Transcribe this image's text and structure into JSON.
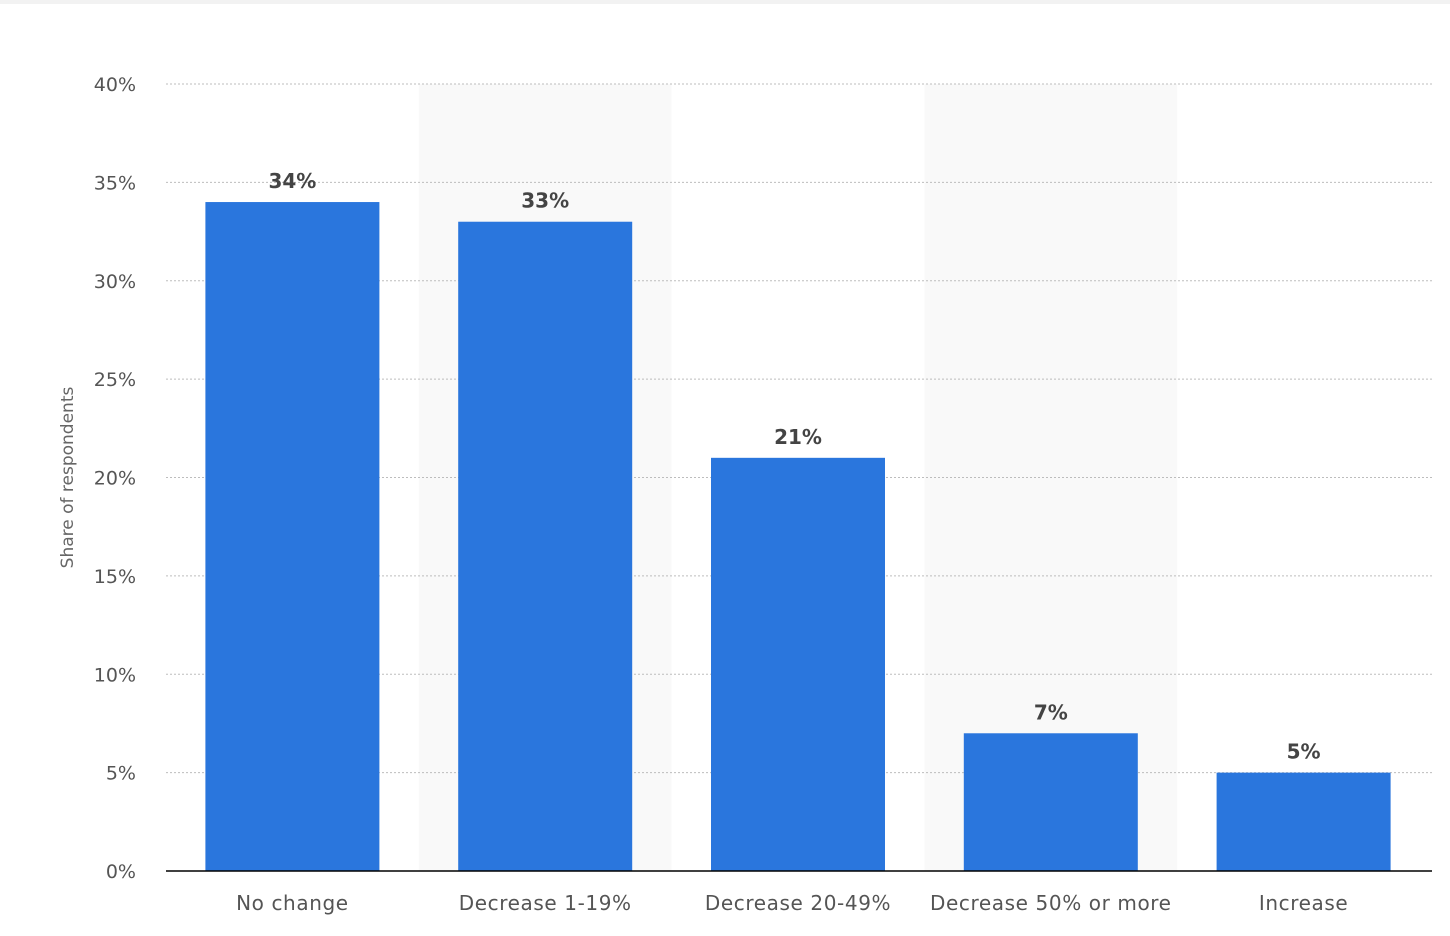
{
  "chart_data": {
    "type": "bar",
    "categories": [
      "No change",
      "Decrease 1-19%",
      "Decrease 20-49%",
      "Decrease 50% or more",
      "Increase"
    ],
    "values": [
      34,
      33,
      21,
      7,
      5
    ],
    "value_labels": [
      "34%",
      "33%",
      "21%",
      "7%",
      "5%"
    ],
    "title": "",
    "xlabel": "",
    "ylabel": "Share of respondents",
    "ylim": [
      0,
      40
    ],
    "yticks": [
      0,
      5,
      10,
      15,
      20,
      25,
      30,
      35,
      40
    ],
    "ytick_labels": [
      "0%",
      "5%",
      "10%",
      "15%",
      "20%",
      "25%",
      "30%",
      "35%",
      "40%"
    ],
    "grid": true,
    "legend": "none",
    "colors": {
      "bar": "#2a76dd",
      "band": "#f9f9f9",
      "grid": "#bdbdbd",
      "axis": "#000000"
    }
  }
}
